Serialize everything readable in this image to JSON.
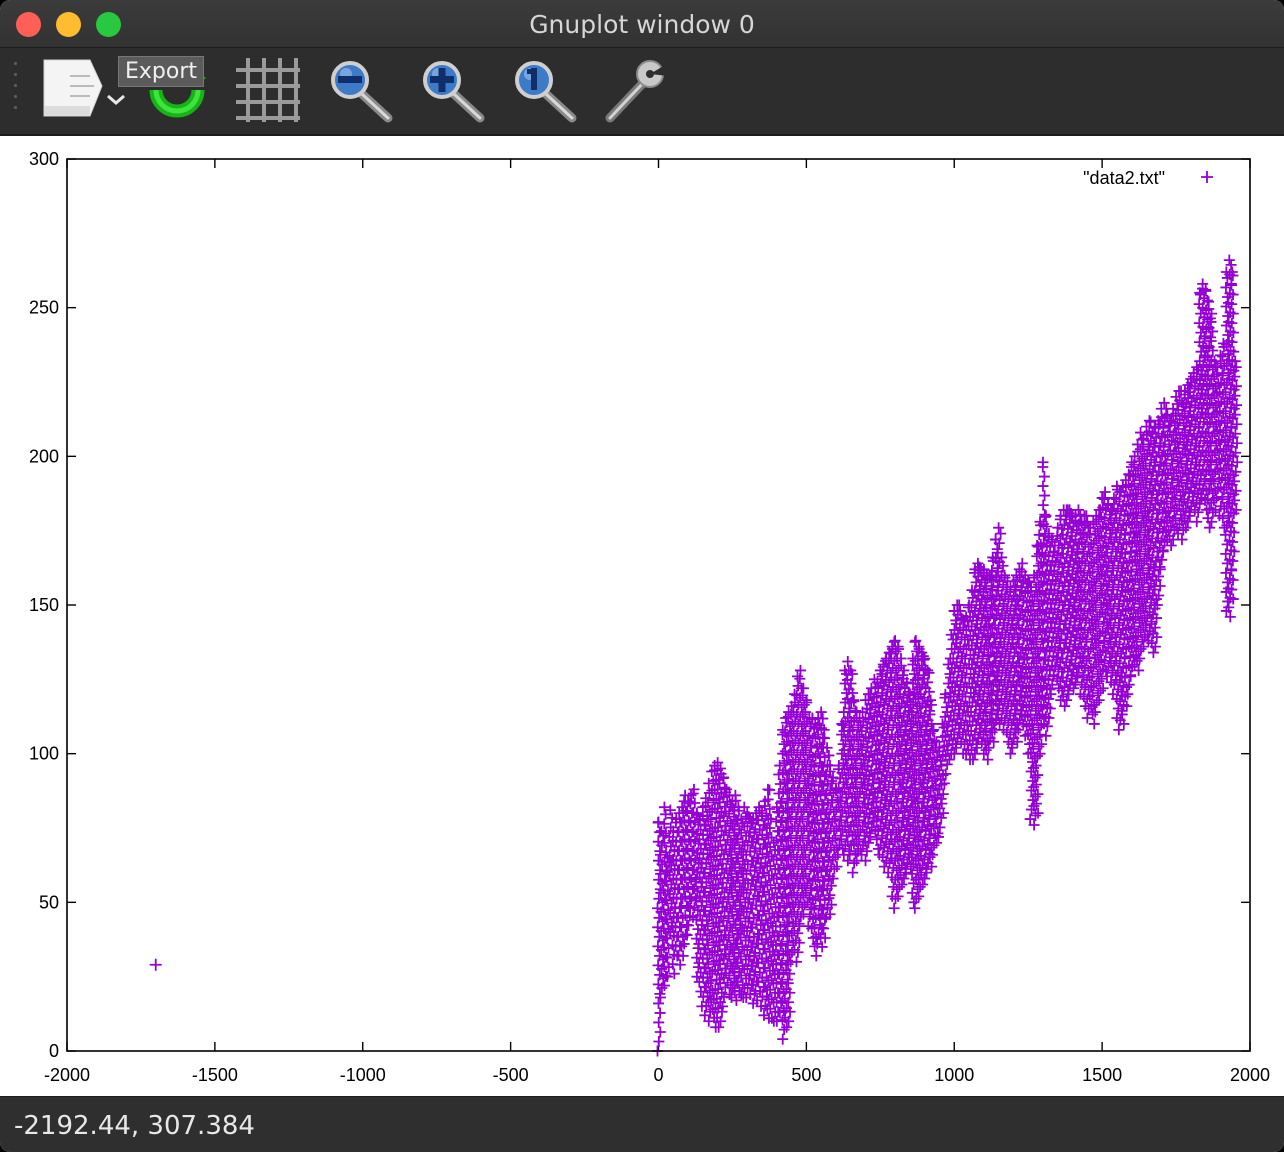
{
  "window": {
    "title": "Gnuplot window 0"
  },
  "toolbar": {
    "buttons": [
      {
        "name": "export-button",
        "icon": "export-icon"
      },
      {
        "name": "replot-button",
        "icon": "replot-icon"
      },
      {
        "name": "grid-button",
        "icon": "grid-icon"
      },
      {
        "name": "zoom-out-button",
        "icon": "zoom-out-icon"
      },
      {
        "name": "zoom-in-button",
        "icon": "zoom-in-icon"
      },
      {
        "name": "zoom-reset-button",
        "icon": "zoom-reset-icon"
      },
      {
        "name": "settings-button",
        "icon": "wrench-icon"
      }
    ],
    "tooltip": "Export"
  },
  "status": {
    "coords": "-2192.44,  307.384"
  },
  "colors": {
    "series": "#9400d3",
    "titlebar": "#383838",
    "toolbar": "#2d2d2d"
  },
  "chart_data": {
    "type": "scatter",
    "title": "",
    "xlabel": "",
    "ylabel": "",
    "xlim": [
      -2000,
      2000
    ],
    "ylim": [
      0,
      300
    ],
    "xticks": [
      "-2000",
      "-1500",
      "-1000",
      "-500",
      "0",
      "500",
      "1000",
      "1500",
      "2000"
    ],
    "yticks": [
      "0",
      "50",
      "100",
      "150",
      "200",
      "250",
      "300"
    ],
    "grid": false,
    "legend": "top-right",
    "series": [
      {
        "name": "\"data2.txt\"",
        "marker": "+",
        "color": "#9400d3",
        "outlier": {
          "x": -1700,
          "y": 29
        },
        "columns": [
          [
            0,
            0,
            77
          ],
          [
            10,
            18,
            74
          ],
          [
            20,
            22,
            82
          ],
          [
            30,
            25,
            65
          ],
          [
            40,
            40,
            81
          ],
          [
            50,
            26,
            74
          ],
          [
            60,
            32,
            78
          ],
          [
            70,
            29,
            80
          ],
          [
            80,
            32,
            82
          ],
          [
            90,
            36,
            86
          ],
          [
            100,
            39,
            84
          ],
          [
            110,
            48,
            86
          ],
          [
            120,
            45,
            88
          ],
          [
            130,
            25,
            80
          ],
          [
            140,
            20,
            78
          ],
          [
            150,
            15,
            82
          ],
          [
            160,
            12,
            85
          ],
          [
            170,
            10,
            90
          ],
          [
            180,
            14,
            94
          ],
          [
            190,
            8,
            96
          ],
          [
            200,
            8,
            97
          ],
          [
            210,
            10,
            95
          ],
          [
            220,
            15,
            92
          ],
          [
            230,
            23,
            88
          ],
          [
            240,
            19,
            86
          ],
          [
            250,
            18,
            84
          ],
          [
            260,
            17,
            86
          ],
          [
            270,
            20,
            82
          ],
          [
            280,
            19,
            78
          ],
          [
            290,
            18,
            82
          ],
          [
            300,
            18,
            80
          ],
          [
            310,
            19,
            78
          ],
          [
            320,
            16,
            78
          ],
          [
            330,
            17,
            80
          ],
          [
            340,
            20,
            82
          ],
          [
            350,
            15,
            80
          ],
          [
            360,
            12,
            84
          ],
          [
            370,
            11,
            88
          ],
          [
            380,
            11,
            78
          ],
          [
            390,
            10,
            70
          ],
          [
            400,
            10,
            82
          ],
          [
            410,
            13,
            96
          ],
          [
            420,
            4,
            108
          ],
          [
            430,
            8,
            112
          ],
          [
            440,
            10,
            114
          ],
          [
            450,
            30,
            116
          ],
          [
            460,
            34,
            120
          ],
          [
            470,
            30,
            126
          ],
          [
            480,
            42,
            128
          ],
          [
            490,
            46,
            122
          ],
          [
            500,
            50,
            118
          ],
          [
            510,
            42,
            112
          ],
          [
            520,
            38,
            112
          ],
          [
            530,
            32,
            110
          ],
          [
            540,
            36,
            112
          ],
          [
            550,
            35,
            114
          ],
          [
            560,
            38,
            108
          ],
          [
            570,
            45,
            102
          ],
          [
            580,
            46,
            96
          ],
          [
            590,
            58,
            92
          ],
          [
            600,
            62,
            88
          ],
          [
            610,
            66,
            96
          ],
          [
            620,
            68,
            110
          ],
          [
            630,
            66,
            128
          ],
          [
            640,
            64,
            131
          ],
          [
            650,
            66,
            128
          ],
          [
            660,
            60,
            118
          ],
          [
            670,
            64,
            114
          ],
          [
            680,
            68,
            112
          ],
          [
            690,
            66,
            114
          ],
          [
            700,
            64,
            118
          ],
          [
            710,
            70,
            120
          ],
          [
            720,
            72,
            122
          ],
          [
            730,
            74,
            125
          ],
          [
            740,
            68,
            124
          ],
          [
            750,
            66,
            128
          ],
          [
            760,
            62,
            130
          ],
          [
            770,
            64,
            132
          ],
          [
            780,
            60,
            134
          ],
          [
            790,
            52,
            136
          ],
          [
            800,
            48,
            138
          ],
          [
            810,
            52,
            136
          ],
          [
            820,
            56,
            132
          ],
          [
            830,
            58,
            128
          ],
          [
            840,
            60,
            124
          ],
          [
            850,
            62,
            120
          ],
          [
            860,
            50,
            132
          ],
          [
            870,
            48,
            138
          ],
          [
            880,
            52,
            136
          ],
          [
            890,
            56,
            134
          ],
          [
            900,
            58,
            132
          ],
          [
            910,
            60,
            128
          ],
          [
            920,
            62,
            118
          ],
          [
            930,
            66,
            108
          ],
          [
            940,
            70,
            104
          ],
          [
            950,
            72,
            102
          ],
          [
            960,
            80,
            110
          ],
          [
            970,
            90,
            120
          ],
          [
            980,
            98,
            130
          ],
          [
            990,
            100,
            140
          ],
          [
            1000,
            100,
            148
          ],
          [
            1010,
            102,
            150
          ],
          [
            1020,
            104,
            148
          ],
          [
            1030,
            100,
            145
          ],
          [
            1040,
            100,
            146
          ],
          [
            1050,
            98,
            150
          ],
          [
            1060,
            98,
            155
          ],
          [
            1070,
            100,
            162
          ],
          [
            1080,
            102,
            164
          ],
          [
            1090,
            104,
            162
          ],
          [
            1100,
            100,
            162
          ],
          [
            1110,
            98,
            160
          ],
          [
            1120,
            102,
            160
          ],
          [
            1130,
            104,
            166
          ],
          [
            1140,
            108,
            172
          ],
          [
            1150,
            110,
            176
          ],
          [
            1160,
            112,
            166
          ],
          [
            1170,
            108,
            160
          ],
          [
            1180,
            104,
            158
          ],
          [
            1190,
            100,
            156
          ],
          [
            1200,
            102,
            158
          ],
          [
            1210,
            104,
            160
          ],
          [
            1220,
            108,
            162
          ],
          [
            1230,
            110,
            164
          ],
          [
            1240,
            106,
            160
          ],
          [
            1250,
            100,
            158
          ],
          [
            1260,
            78,
            156
          ],
          [
            1270,
            76,
            160
          ],
          [
            1280,
            80,
            170
          ],
          [
            1290,
            100,
            178
          ],
          [
            1300,
            110,
            198
          ],
          [
            1310,
            106,
            180
          ],
          [
            1320,
            112,
            174
          ],
          [
            1330,
            120,
            172
          ],
          [
            1340,
            126,
            170
          ],
          [
            1350,
            122,
            176
          ],
          [
            1360,
            118,
            180
          ],
          [
            1370,
            116,
            182
          ],
          [
            1380,
            118,
            182
          ],
          [
            1390,
            120,
            182
          ],
          [
            1400,
            122,
            180
          ],
          [
            1410,
            124,
            180
          ],
          [
            1420,
            126,
            182
          ],
          [
            1430,
            120,
            178
          ],
          [
            1440,
            116,
            180
          ],
          [
            1450,
            112,
            178
          ],
          [
            1460,
            116,
            176
          ],
          [
            1470,
            110,
            178
          ],
          [
            1480,
            114,
            180
          ],
          [
            1490,
            118,
            182
          ],
          [
            1500,
            122,
            186
          ],
          [
            1510,
            128,
            188
          ],
          [
            1520,
            126,
            184
          ],
          [
            1530,
            124,
            182
          ],
          [
            1540,
            120,
            186
          ],
          [
            1550,
            112,
            190
          ],
          [
            1560,
            108,
            188
          ],
          [
            1570,
            110,
            190
          ],
          [
            1580,
            116,
            192
          ],
          [
            1590,
            120,
            194
          ],
          [
            1600,
            126,
            198
          ],
          [
            1610,
            130,
            200
          ],
          [
            1620,
            128,
            204
          ],
          [
            1630,
            132,
            208
          ],
          [
            1640,
            136,
            206
          ],
          [
            1650,
            140,
            210
          ],
          [
            1660,
            138,
            212
          ],
          [
            1670,
            134,
            208
          ],
          [
            1680,
            136,
            210
          ],
          [
            1690,
            150,
            212
          ],
          [
            1700,
            162,
            216
          ],
          [
            1710,
            168,
            218
          ],
          [
            1720,
            172,
            214
          ],
          [
            1730,
            170,
            212
          ],
          [
            1740,
            172,
            216
          ],
          [
            1750,
            176,
            220
          ],
          [
            1760,
            174,
            222
          ],
          [
            1770,
            172,
            218
          ],
          [
            1780,
            176,
            222
          ],
          [
            1790,
            178,
            224
          ],
          [
            1800,
            180,
            226
          ],
          [
            1810,
            182,
            228
          ],
          [
            1820,
            178,
            230
          ],
          [
            1830,
            184,
            255
          ],
          [
            1840,
            186,
            258
          ],
          [
            1850,
            182,
            256
          ],
          [
            1860,
            176,
            252
          ],
          [
            1870,
            178,
            248
          ],
          [
            1880,
            182,
            232
          ],
          [
            1890,
            186,
            230
          ],
          [
            1900,
            180,
            234
          ],
          [
            1910,
            176,
            238
          ],
          [
            1920,
            148,
            262
          ],
          [
            1930,
            146,
            266
          ],
          [
            1940,
            152,
            262
          ],
          [
            1950,
            182,
            232
          ]
        ]
      }
    ]
  }
}
